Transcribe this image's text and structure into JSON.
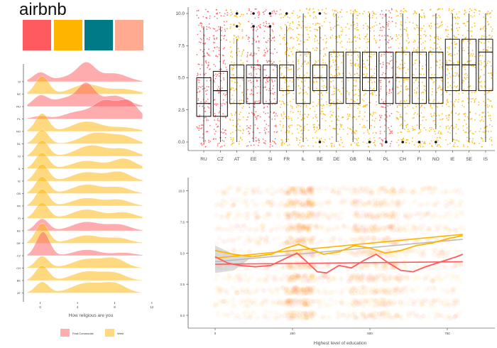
{
  "header": {
    "title": "airbnb",
    "swatches": [
      "#FF5A5F",
      "#FFB400",
      "#007A87",
      "#FFAA91"
    ]
  },
  "colors": {
    "post_communist": "#FF5A5F",
    "west": "#FFB400",
    "gray_line": "#BBBBBB"
  },
  "chart_data": [
    {
      "type": "area",
      "subtype": "ridgeline-density",
      "xlabel": "How religious are you",
      "xticks": [
        0,
        4,
        8,
        12
      ],
      "xlim": [
        -1.5,
        13
      ],
      "countries": [
        "SI",
        "SE",
        "RU",
        "PL",
        "NO",
        "NL",
        "IS",
        "IL",
        "IE",
        "GB",
        "FR",
        "FI",
        "EE",
        "DE",
        "CZ",
        "CH",
        "BE",
        "AT"
      ],
      "groups": {
        "SI": "Post-Communist",
        "SE": "West",
        "RU": "Post-Communist",
        "PL": "Post-Communist",
        "NO": "West",
        "NL": "West",
        "IS": "West",
        "IL": "West",
        "IE": "West",
        "GB": "West",
        "FR": "West",
        "FI": "West",
        "EE": "Post-Communist",
        "DE": "West",
        "CZ": "Post-Communist",
        "CH": "West",
        "BE": "West",
        "AT": "West"
      },
      "legend": {
        "items": [
          "Post-Communist",
          "West"
        ],
        "placement": "bottom"
      },
      "grid": false
    },
    {
      "type": "box",
      "categories": [
        "RU",
        "CZ",
        "AT",
        "EE",
        "SI",
        "FR",
        "IL",
        "BE",
        "DE",
        "GB",
        "NL",
        "PL",
        "CH",
        "FI",
        "NO",
        "IE",
        "SE",
        "IS"
      ],
      "groups": [
        "Post-Communist",
        "Post-Communist",
        "West",
        "Post-Communist",
        "Post-Communist",
        "West",
        "West",
        "West",
        "West",
        "West",
        "West",
        "Post-Communist",
        "West",
        "West",
        "West",
        "West",
        "West",
        "West"
      ],
      "median": [
        3,
        4,
        5,
        5,
        5,
        5,
        5,
        5,
        5,
        5,
        5,
        5,
        5,
        5,
        5,
        6,
        6,
        7
      ],
      "q1": [
        2,
        2,
        3,
        3,
        3,
        4,
        3,
        4,
        3,
        3,
        4,
        3,
        3,
        3,
        3,
        4,
        4,
        4
      ],
      "q3": [
        5,
        5.5,
        6,
        6,
        6,
        6,
        7,
        6,
        7,
        7,
        7,
        7,
        7,
        7,
        7,
        8,
        8,
        8
      ],
      "whisker_low": [
        0,
        0,
        0,
        0,
        0,
        0,
        0,
        1,
        0,
        0,
        1,
        0,
        1,
        1,
        1,
        0,
        0,
        0
      ],
      "whisker_high": [
        9,
        9,
        8,
        9,
        9,
        9,
        10,
        9,
        10,
        10,
        10,
        10,
        10,
        10,
        10,
        10,
        10,
        10
      ],
      "outliers": [
        [],
        [],
        [
          9,
          10
        ],
        [
          9,
          10
        ],
        [
          9,
          10
        ],
        [
          10
        ],
        [],
        [
          0,
          10
        ],
        [],
        [],
        [
          0
        ],
        [
          0
        ],
        [
          0
        ],
        [
          0
        ],
        [
          0
        ],
        [],
        [],
        []
      ],
      "yticks": [
        "0.0",
        "2.5",
        "5.0",
        "7.5",
        "10.0"
      ],
      "ylim": [
        0,
        10
      ],
      "grid": false
    },
    {
      "type": "scatter",
      "xlabel": "Highest level of education",
      "xticks": [
        0,
        250,
        500,
        750
      ],
      "xlim": [
        -50,
        880
      ],
      "yticks": [
        "0.0",
        "2.5",
        "5.0",
        "7.5",
        "10.0"
      ],
      "ylim": [
        -0.3,
        10.5
      ],
      "series": [
        {
          "color": "#FFB400",
          "linear": [
            [
              0,
              4.6
            ],
            [
              800,
              6.5
            ]
          ]
        },
        {
          "color": "#FF5A5F",
          "linear": [
            [
              0,
              4.1
            ],
            [
              800,
              4.3
            ]
          ]
        },
        {
          "color": "#BBBBBB",
          "linear": [
            [
              0,
              4.3
            ],
            [
              800,
              6.1
            ]
          ]
        }
      ],
      "smooth_red": [
        [
          0,
          4.7
        ],
        [
          40,
          4.2
        ],
        [
          80,
          4.0
        ],
        [
          130,
          3.9
        ],
        [
          180,
          4.0
        ],
        [
          230,
          4.6
        ],
        [
          265,
          5.0
        ],
        [
          300,
          4.2
        ],
        [
          330,
          3.5
        ],
        [
          360,
          3.4
        ],
        [
          400,
          4.0
        ],
        [
          440,
          3.8
        ],
        [
          480,
          4.4
        ],
        [
          520,
          4.9
        ],
        [
          560,
          4.2
        ],
        [
          600,
          3.6
        ],
        [
          640,
          3.5
        ],
        [
          680,
          3.9
        ],
        [
          730,
          4.3
        ],
        [
          780,
          4.7
        ],
        [
          800,
          4.9
        ]
      ],
      "smooth_gold": [
        [
          0,
          5.2
        ],
        [
          60,
          4.9
        ],
        [
          120,
          4.7
        ],
        [
          180,
          4.9
        ],
        [
          230,
          5.4
        ],
        [
          270,
          5.7
        ],
        [
          310,
          5.3
        ],
        [
          350,
          4.9
        ],
        [
          400,
          5.1
        ],
        [
          450,
          5.6
        ],
        [
          500,
          5.4
        ],
        [
          550,
          5.0
        ],
        [
          600,
          5.2
        ],
        [
          650,
          5.6
        ],
        [
          700,
          5.8
        ],
        [
          760,
          6.2
        ],
        [
          800,
          6.4
        ]
      ],
      "grid": false
    }
  ]
}
